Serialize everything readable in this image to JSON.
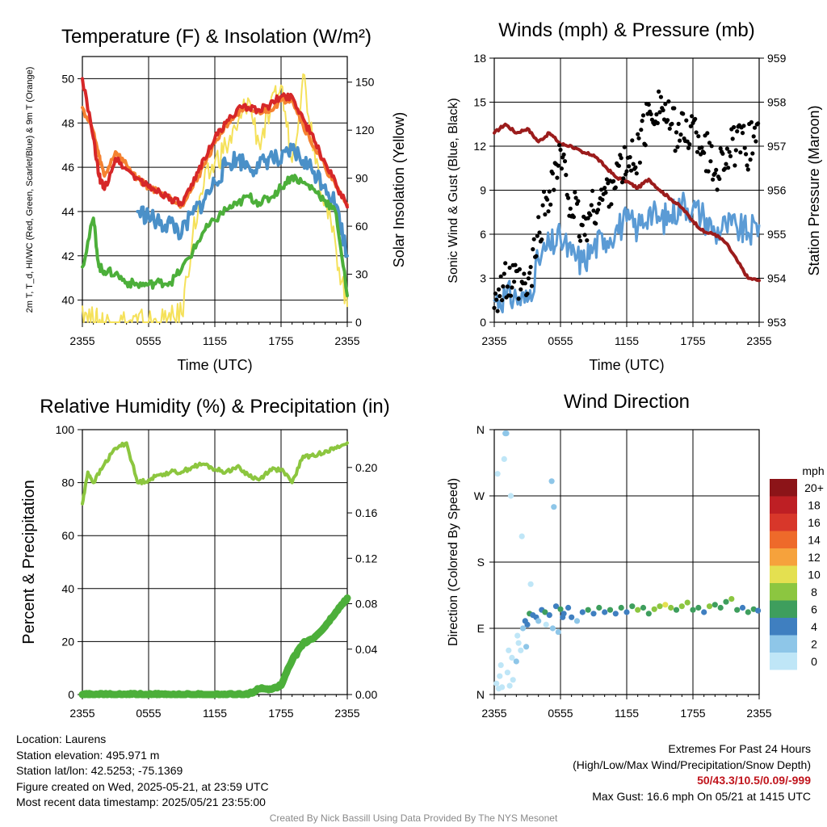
{
  "colors": {
    "t2m": "#d62728",
    "dewpoint": "#4caf3a",
    "heat_index_wind_chill": "#4a90c8",
    "t9m": "#f58231",
    "solar": "#f5e15a",
    "rh": "#8cc63f",
    "precip": "#4caf3a",
    "wind_speed": "#5b9bd5",
    "wind_gust": "#000000",
    "pressure": "#9b1c1c",
    "grid": "#000000"
  },
  "info": {
    "location": "Location: Laurens",
    "elevation": "Station elevation: 495.971 m",
    "latlon": "Station lat/lon: 42.5253; -75.1369",
    "created": "Figure created on Wed, 2025-05-21, at 23:59 UTC",
    "recent": "Most recent data timestamp: 2025/05/21 23:55:00",
    "extremes_title": "Extremes For Past 24 Hours",
    "extremes_legend": "(High/Low/Max Wind/Precipitation/Snow Depth)",
    "extremes_values": "50/43.3/10.5/0.09/-999",
    "max_gust": "Max Gust: 16.6 mph On 05/21 at 1415 UTC"
  },
  "credit": "Created By Nick Bassill Using Data Provided By The NYS Mesonet",
  "chart_data": [
    {
      "type": "line",
      "title": "Temperature (F) & Insolation (W/m²)",
      "xlabel": "Time (UTC)",
      "ylabel": "2m T, T_d, HI/WC (Red, Green, Scarlet/Blue) & 9m T (Orange)",
      "y2label": "Solar Insolation (Yellow)",
      "x_ticks": [
        "2355",
        "0555",
        "1155",
        "1755",
        "2355"
      ],
      "ylim": [
        39,
        51
      ],
      "y_ticks": [
        40,
        42,
        44,
        46,
        48,
        50
      ],
      "y2lim": [
        0,
        166
      ],
      "y2_ticks": [
        0,
        30,
        60,
        90,
        120,
        150
      ],
      "x_hours": [
        0,
        1,
        1.5,
        2,
        3,
        4,
        5,
        6,
        7,
        8,
        9,
        10,
        11,
        12,
        13,
        14,
        15,
        16,
        17,
        18,
        19,
        20,
        21,
        22,
        23,
        24
      ],
      "series": [
        {
          "name": "2m T",
          "color_key": "t2m",
          "axis": "y",
          "values": [
            50,
            47.3,
            45.6,
            45,
            46.4,
            45.9,
            45.5,
            45.1,
            44.9,
            44.6,
            44.3,
            45.2,
            46.4,
            47.3,
            48,
            48.6,
            48.7,
            48.6,
            48.8,
            49.2,
            49.2,
            48.2,
            47.2,
            46.2,
            45.2,
            44.2
          ]
        },
        {
          "name": "9m T",
          "color_key": "t9m",
          "axis": "y",
          "values": [
            48.7,
            47.6,
            46.5,
            45.6,
            46.7,
            46.1,
            45.5,
            45.1,
            44.9,
            44.6,
            44.3,
            45.1,
            46.1,
            47.1,
            47.9,
            48.4,
            48.6,
            48.5,
            48.6,
            49,
            49.1,
            47.9,
            46.9,
            46,
            45.1,
            44.3
          ]
        },
        {
          "name": "Td",
          "color_key": "dewpoint",
          "axis": "y",
          "values": [
            41.5,
            43.7,
            41.5,
            41.3,
            41.2,
            40.8,
            40.7,
            40.7,
            40.8,
            40.8,
            41.4,
            42.2,
            43.1,
            43.6,
            44.1,
            44.3,
            44.7,
            44.4,
            44.6,
            45.1,
            45.6,
            45.3,
            45,
            44.5,
            43.9,
            40.2
          ]
        },
        {
          "name": "HI/WC",
          "color_key": "heat_index_wind_chill",
          "axis": "y",
          "values": [
            null,
            null,
            null,
            null,
            null,
            null,
            44,
            43.8,
            43.4,
            43.5,
            43,
            43.9,
            44.5,
            45.3,
            46.1,
            46.4,
            46.1,
            46,
            46.5,
            46.2,
            46.8,
            46.3,
            45.8,
            45.2,
            44.3,
            42
          ]
        },
        {
          "name": "Solar",
          "color_key": "solar",
          "axis": "y2",
          "values": [
            10,
            0,
            0,
            0,
            0,
            0,
            0,
            0,
            0,
            1,
            5,
            55,
            85,
            100,
            110,
            120,
            140,
            112,
            130,
            148,
            100,
            155,
            110,
            75,
            45,
            10
          ]
        }
      ]
    },
    {
      "type": "line",
      "title": "Winds (mph) & Pressure (mb)",
      "xlabel": "Time (UTC)",
      "ylabel": "Sonic Wind & Gust (Blue, Black)",
      "y2label": "Station Pressure (Maroon)",
      "x_ticks": [
        "2355",
        "0555",
        "1155",
        "1755",
        "2355"
      ],
      "ylim": [
        0,
        18
      ],
      "y_ticks": [
        0,
        3,
        6,
        9,
        12,
        15,
        18
      ],
      "y2lim": [
        953,
        959
      ],
      "y2_ticks": [
        953,
        954,
        955,
        956,
        957,
        958,
        959
      ],
      "x_hours": [
        0,
        1,
        2,
        3,
        4,
        5,
        6,
        7,
        8,
        9,
        10,
        11,
        12,
        13,
        14,
        15,
        16,
        17,
        18,
        19,
        20,
        21,
        22,
        23,
        24
      ],
      "series": [
        {
          "name": "Sonic Wind",
          "color_key": "wind_speed",
          "axis": "y",
          "values": [
            1.5,
            1.8,
            1.7,
            1.4,
            4.2,
            5.2,
            5.7,
            4.6,
            4.1,
            5.1,
            5.7,
            6.3,
            6.9,
            6.4,
            7.6,
            6.9,
            7.3,
            8.1,
            7.8,
            7.2,
            6.1,
            6.6,
            6.4,
            6.1,
            6.6
          ]
        },
        {
          "name": "Gust",
          "color_key": "wind_gust",
          "axis": "y",
          "values": [
            2,
            2.6,
            2.5,
            2,
            6,
            9.2,
            11.2,
            8,
            6.2,
            7.8,
            8.6,
            10.1,
            10.6,
            11.6,
            14.1,
            15.1,
            13.3,
            12.9,
            13.2,
            12.1,
            10.2,
            11.6,
            12,
            11.9,
            13.6
          ]
        },
        {
          "name": "Pressure",
          "color_key": "pressure",
          "axis": "y2",
          "values": [
            957.3,
            957.5,
            957.3,
            957.4,
            957.1,
            957.3,
            957.05,
            957.0,
            956.85,
            956.8,
            956.55,
            956.3,
            956.2,
            956.05,
            956.25,
            956.0,
            955.8,
            955.6,
            955.3,
            955.05,
            955.0,
            954.8,
            954.4,
            954.0,
            953.95
          ]
        }
      ]
    },
    {
      "type": "line",
      "title": "Relative Humidity (%) & Precipitation (in)",
      "xlabel": "",
      "ylabel": "Percent & Precipitation",
      "x_ticks": [
        "2355",
        "0555",
        "1155",
        "1755",
        "2355"
      ],
      "ylim": [
        0,
        100
      ],
      "y_ticks": [
        0,
        20,
        40,
        60,
        80,
        100
      ],
      "y2lim": [
        0,
        0.2333
      ],
      "y2_ticks": [
        "0.00",
        "0.04",
        "0.08",
        "0.12",
        "0.16",
        "0.20"
      ],
      "x_hours": [
        0,
        0.5,
        1,
        2,
        3,
        4,
        5,
        6,
        7,
        8,
        9,
        10,
        11,
        12,
        13,
        14,
        15,
        16,
        17,
        18,
        19,
        20,
        21,
        22,
        23,
        24
      ],
      "series": [
        {
          "name": "RH",
          "color_key": "rh",
          "axis": "y",
          "values": [
            72,
            84,
            80,
            87,
            93,
            95,
            80,
            81,
            83,
            84,
            84,
            86,
            87,
            85,
            84,
            86,
            83,
            81,
            85,
            85,
            80,
            90,
            90,
            92,
            93,
            95
          ]
        },
        {
          "name": "Precip",
          "color_key": "precip",
          "axis": "y2",
          "values": [
            0,
            0,
            0,
            0,
            0,
            0,
            0,
            0,
            0,
            0,
            0,
            0,
            0,
            0,
            0,
            0,
            0,
            0.005,
            0.005,
            0.008,
            0.03,
            0.045,
            0.05,
            0.06,
            0.073,
            0.085
          ]
        }
      ]
    },
    {
      "type": "scatter",
      "title": "Wind Direction",
      "ylabel": "Direction (Colored By Speed)",
      "x_ticks": [
        "2355",
        "0555",
        "1155",
        "1755",
        "2355"
      ],
      "y_ticks": [
        "N",
        "E",
        "S",
        "W",
        "N"
      ],
      "ylim": [
        0,
        360
      ],
      "colorbar_unit": "mph",
      "colorbar_labels": [
        "0",
        "2",
        "4",
        "6",
        "8",
        "10",
        "12",
        "14",
        "16",
        "18",
        "20+"
      ],
      "colorbar_colors": [
        "#bfe6f7",
        "#8ec6e8",
        "#3f7fc0",
        "#3e9e5d",
        "#8cc640",
        "#e4e050",
        "#f6a23c",
        "#ee6a2a",
        "#d8372a",
        "#be1f24",
        "#8c1418"
      ],
      "points_hours": [
        0.2,
        0.4,
        0.5,
        0.7,
        0.9,
        1.0,
        1.2,
        1.4,
        1.5,
        1.7,
        2.0,
        2.2,
        2.4,
        2.6,
        2.8,
        3.0,
        3.2,
        3.5,
        3.8,
        4.0,
        4.3,
        4.6,
        5.0,
        5.3,
        5.6,
        6.0,
        6.3,
        6.7,
        7.0,
        7.5,
        8.0,
        8.5,
        9.0,
        9.5,
        10.0,
        10.5,
        11.0,
        11.5,
        12.0,
        12.5,
        13.0,
        13.5,
        14.0,
        14.5,
        15.0,
        15.5,
        16.0,
        16.5,
        17.0,
        17.5,
        18.0,
        18.5,
        19.0,
        19.5,
        20.0,
        20.5,
        21.0,
        21.5,
        22.0,
        22.5,
        23.0,
        23.5,
        23.9,
        0.3,
        1.1,
        1.3,
        2.1,
        2.5,
        3.3,
        5.2,
        5.4,
        0.6,
        1.6,
        2.9,
        4.7,
        5.8,
        6.2
      ],
      "points_dir": [
        15,
        8,
        25,
        10,
        320,
        355,
        30,
        12,
        270,
        20,
        45,
        70,
        60,
        90,
        100,
        95,
        110,
        108,
        105,
        100,
        115,
        112,
        108,
        90,
        120,
        116,
        110,
        118,
        105,
        100,
        112,
        115,
        110,
        118,
        112,
        115,
        110,
        118,
        112,
        120,
        115,
        118,
        110,
        116,
        120,
        122,
        118,
        115,
        120,
        125,
        115,
        118,
        112,
        120,
        122,
        118,
        126,
        130,
        115,
        118,
        112,
        116,
        114,
        300,
        355,
        60,
        80,
        215,
        150,
        290,
        255,
        40,
        50,
        65,
        95,
        85,
        105
      ],
      "points_speed": [
        1,
        1,
        1.5,
        1,
        1,
        2,
        1.5,
        0.5,
        1,
        1.5,
        2,
        1,
        1,
        3,
        4,
        5,
        6,
        4,
        5,
        3,
        5,
        6,
        4,
        2,
        5,
        6,
        4,
        5,
        4,
        3,
        5,
        6,
        5,
        7,
        5,
        6,
        4,
        6,
        5,
        7,
        8,
        7,
        6,
        8,
        9,
        10,
        8,
        7,
        8,
        9,
        7,
        6,
        5,
        8,
        7,
        6,
        7,
        8,
        6,
        5,
        6,
        7,
        5,
        0.5,
        2,
        1,
        1,
        1,
        0.5,
        3,
        3,
        1,
        1,
        2,
        1,
        2,
        4
      ]
    }
  ]
}
